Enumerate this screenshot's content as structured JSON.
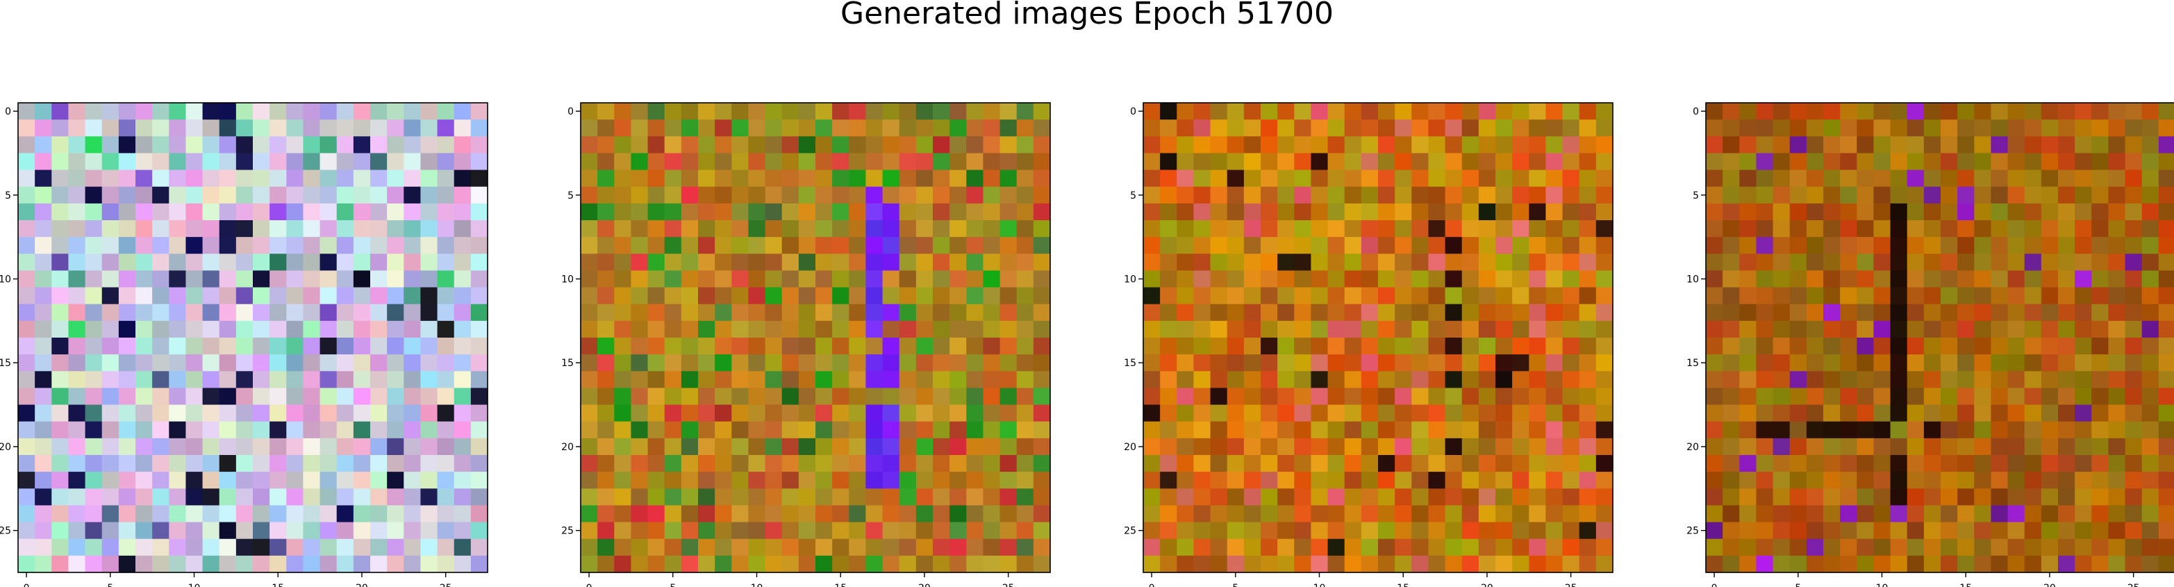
{
  "figure": {
    "title": "Generated images Epoch 51700"
  },
  "chart_data": [
    {
      "type": "heatmap",
      "title": "",
      "xlabel": "",
      "ylabel": "",
      "grid": false,
      "x_ticks": [
        "0",
        "5",
        "10",
        "15",
        "20",
        "25"
      ],
      "y_ticks": [
        "0",
        "5",
        "10",
        "15",
        "20",
        "25"
      ],
      "xlim": [
        -0.5,
        27.5
      ],
      "ylim": [
        27.5,
        -0.5
      ],
      "size": [
        28,
        28
      ],
      "palette": "pastel",
      "seed": 11
    },
    {
      "type": "heatmap",
      "title": "",
      "xlabel": "",
      "ylabel": "",
      "grid": false,
      "x_ticks": [
        "0",
        "5",
        "10",
        "15",
        "20",
        "25"
      ],
      "y_ticks": [
        "0",
        "5",
        "10",
        "15",
        "20",
        "25"
      ],
      "xlim": [
        -0.5,
        27.5
      ],
      "ylim": [
        27.5,
        -0.5
      ],
      "size": [
        28,
        28
      ],
      "palette": "olive-blue",
      "seed": 23
    },
    {
      "type": "heatmap",
      "title": "",
      "xlabel": "",
      "ylabel": "",
      "grid": false,
      "x_ticks": [
        "0",
        "5",
        "10",
        "15",
        "20",
        "25"
      ],
      "y_ticks": [
        "0",
        "5",
        "10",
        "15",
        "20",
        "25"
      ],
      "xlim": [
        -0.5,
        27.5
      ],
      "ylim": [
        27.5,
        -0.5
      ],
      "size": [
        28,
        28
      ],
      "palette": "orange-olive",
      "seed": 37
    },
    {
      "type": "heatmap",
      "title": "",
      "xlabel": "",
      "ylabel": "",
      "grid": false,
      "x_ticks": [
        "0",
        "5",
        "10",
        "15",
        "20",
        "25"
      ],
      "y_ticks": [
        "0",
        "5",
        "10",
        "15",
        "20",
        "25"
      ],
      "xlim": [
        -0.5,
        27.5
      ],
      "ylim": [
        27.5,
        -0.5
      ],
      "size": [
        28,
        28
      ],
      "palette": "olive-dark",
      "seed": 53
    }
  ]
}
